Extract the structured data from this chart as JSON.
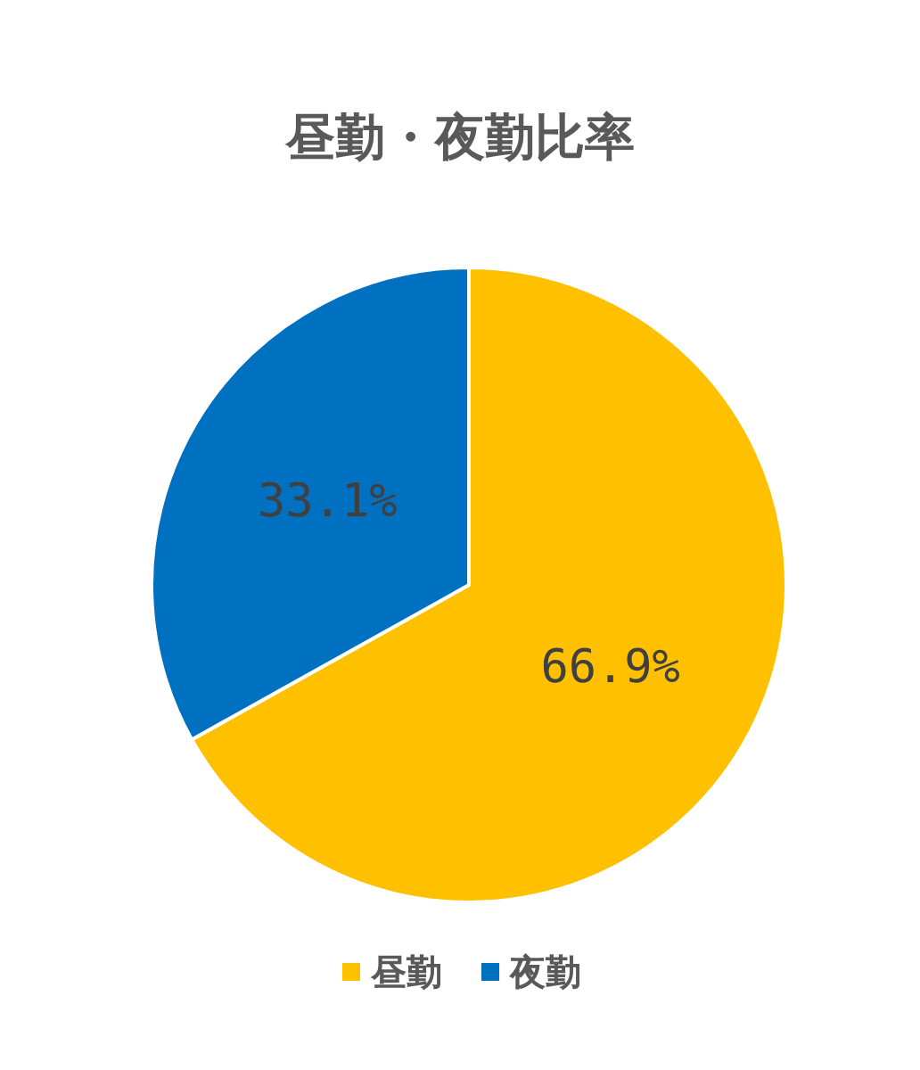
{
  "chart_data": {
    "type": "pie",
    "title": "昼勤・夜勤比率",
    "categories": [
      "昼勤",
      "夜勤"
    ],
    "values": [
      66.9,
      33.1
    ],
    "colors": [
      "#ffc000",
      "#0070c0"
    ],
    "value_labels": [
      "66.9%",
      "33.1%"
    ],
    "legend": "bottom"
  }
}
